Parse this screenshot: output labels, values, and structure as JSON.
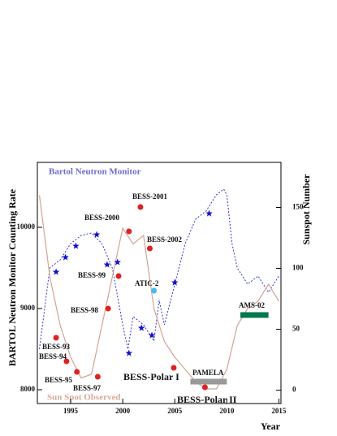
{
  "chart_data": {
    "type": "line",
    "xlabel": "Year",
    "ylabel": "BARTOL Neutron Monitor Counting Rate",
    "y2label": "Sunspot Number",
    "xlim": [
      1991.8,
      2015.2
    ],
    "xticks": [
      1995,
      2000,
      2005,
      2010,
      2015
    ],
    "ylim": [
      7830,
      10800
    ],
    "yticks": [
      8000,
      9000,
      10000
    ],
    "y2lim": [
      -11,
      187
    ],
    "y2ticks": [
      0,
      50,
      100,
      150
    ],
    "series": [
      {
        "name": "Bartol Neutron Monitor",
        "color": "#3333cc",
        "x": [
          1992,
          1993,
          1994,
          1995,
          1996,
          1997,
          1998,
          1999,
          2000,
          2000.5,
          2001,
          2002,
          2003,
          2003.5,
          2004,
          2005,
          2006,
          2007,
          2008,
          2009,
          2009.7,
          2010,
          2010.5,
          2011,
          2012,
          2013,
          2014,
          2015
        ],
        "values": [
          8500,
          9500,
          9600,
          9800,
          9900,
          9930,
          9800,
          9500,
          8800,
          8500,
          8900,
          8800,
          8600,
          9100,
          8800,
          9300,
          9800,
          10100,
          10200,
          10400,
          10470,
          10400,
          9800,
          9500,
          9300,
          9400,
          9200,
          9400
        ]
      },
      {
        "name": "Sun Spot Observed",
        "color": "#d1a592",
        "axis": "y2",
        "x": [
          1992,
          1993,
          1994,
          1995,
          1996,
          1997,
          1998,
          1999,
          2000,
          2001,
          2002,
          2003,
          2004,
          2005,
          2006,
          2007,
          2008,
          2009,
          2010,
          2011,
          2012,
          2013,
          2014,
          2015
        ],
        "values": [
          160,
          93,
          53,
          27,
          10,
          13,
          53,
          93,
          133,
          120,
          127,
          67,
          40,
          27,
          17,
          7,
          1,
          1,
          17,
          53,
          67,
          73,
          87,
          73
        ]
      }
    ],
    "points": [
      {
        "label": "BESS-93",
        "x": 1993.6,
        "y": 8640,
        "color": "#dd2222"
      },
      {
        "label": "BESS-94",
        "x": 1994.6,
        "y": 8350,
        "color": "#dd2222"
      },
      {
        "label": "BESS-95",
        "x": 1995.6,
        "y": 8220,
        "color": "#dd2222"
      },
      {
        "label": "BESS-97",
        "x": 1997.6,
        "y": 8160,
        "color": "#dd2222"
      },
      {
        "label": "BESS-98",
        "x": 1998.6,
        "y": 9000,
        "color": "#dd2222"
      },
      {
        "label": "BESS-99",
        "x": 1999.6,
        "y": 9400,
        "color": "#dd2222"
      },
      {
        "label": "BESS-2000",
        "x": 2000.6,
        "y": 9950,
        "color": "#dd2222"
      },
      {
        "label": "BESS-2001",
        "x": 2001.7,
        "y": 10250,
        "color": "#dd2222"
      },
      {
        "label": "BESS-2002",
        "x": 2002.6,
        "y": 9740,
        "color": "#dd2222"
      },
      {
        "label": "ATIC-2",
        "x": 2003.0,
        "y": 9220,
        "color": "#44bbee"
      },
      {
        "label": "BESS-Polar I",
        "x": 2004.9,
        "y": 8270,
        "color": "#dd2222"
      },
      {
        "label": "BESS-Polar II",
        "x": 2007.9,
        "y": 8030,
        "color": "#dd2222"
      }
    ],
    "stars": {
      "color": "#1111cc",
      "x": [
        1993.6,
        1994.5,
        1995.5,
        1997.5,
        1998.5,
        1999.5,
        2000.6,
        2001.8,
        2002.8,
        2005.0,
        2008.3
      ],
      "values": [
        9450,
        9630,
        9770,
        9910,
        9540,
        9570,
        8450,
        8760,
        8670,
        9320,
        10170
      ]
    },
    "bands": [
      {
        "label": "PAMELA",
        "x": [
          2006.5,
          2010
        ],
        "value": 8100,
        "color": "#999999"
      },
      {
        "label": "AMS-02",
        "x": [
          2011.3,
          2014
        ],
        "value": 8920,
        "color": "#00774f"
      }
    ]
  }
}
